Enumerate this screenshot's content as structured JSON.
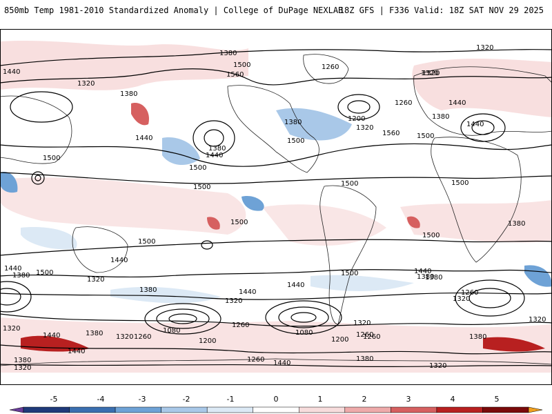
{
  "header": {
    "title": "850mb Temp 1981-2010 Standardized Anomaly | College of DuPage NEXLAB",
    "run_info": "18Z GFS | F336 Valid: 18Z SAT NOV 29 2025"
  },
  "contour_labels": [
    "1380",
    "1320",
    "1440",
    "1320",
    "1500",
    "1560",
    "1260",
    "1320",
    "1380",
    "1260",
    "1440",
    "1380",
    "1440",
    "1200",
    "1320",
    "1380",
    "1500",
    "1560",
    "1500",
    "1440",
    "1500",
    "1500",
    "1380",
    "1440",
    "1500",
    "1500",
    "1500",
    "1500",
    "1500",
    "1500",
    "1440",
    "1380",
    "1500",
    "1440",
    "1320",
    "1440",
    "1380",
    "1380",
    "1320",
    "1440",
    "1500",
    "1440",
    "1320",
    "1380",
    "1260",
    "1260",
    "1080",
    "1080",
    "1200",
    "1200",
    "1320",
    "1260",
    "1380",
    "1260",
    "1320",
    "1320",
    "1440",
    "1380",
    "1320",
    "1380",
    "1440",
    "1260",
    "1440",
    "1380",
    "1320",
    "1260",
    "1320",
    "1320",
    "1380"
  ],
  "colorbar": {
    "ticks": [
      "-5",
      "-4",
      "-3",
      "-2",
      "-1",
      "0",
      "1",
      "2",
      "3",
      "4",
      "5"
    ],
    "colors": [
      "#6a3d9a",
      "#1f3a7a",
      "#3a6fb0",
      "#6ea2d6",
      "#a9c8e8",
      "#dce9f5",
      "#ffffff",
      "#f7dcdc",
      "#eeaaaa",
      "#d66060",
      "#b82020",
      "#7a0a0a",
      "#f0a020"
    ]
  }
}
